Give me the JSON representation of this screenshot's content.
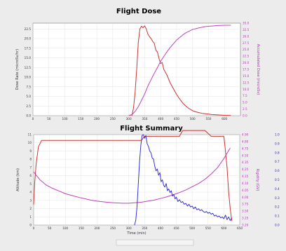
{
  "chart_data": [
    {
      "type": "line",
      "title": "Flight Dose",
      "xlabel": "",
      "ylabel": "Dose Rate (microSv/hr)",
      "y2label": "Accumulated Dose (microSv)",
      "xlim": [
        0,
        650
      ],
      "ylim": [
        0,
        24
      ],
      "y2lim": [
        0,
        35
      ],
      "grid": true,
      "x_ticks": [
        "0",
        "50",
        "100",
        "150",
        "200",
        "250",
        "300",
        "350",
        "400",
        "450",
        "500",
        "550",
        "600"
      ],
      "y_ticks": [
        "0.0",
        "2.5",
        "5.0",
        "7.5",
        "10.0",
        "12.5",
        "15.0",
        "17.5",
        "20.0",
        "22.5"
      ],
      "y2_ticks": [
        "0.0",
        "2.5",
        "5.0",
        "7.5",
        "10.0",
        "12.5",
        "15.0",
        "17.5",
        "20.0",
        "22.5",
        "25.0",
        "27.5",
        "30.0",
        "32.5",
        "35.0"
      ],
      "series": [
        {
          "axis": "left",
          "color": "#cc3333",
          "x": [
            310,
            315,
            320,
            325,
            330,
            335,
            340,
            345,
            350,
            355,
            360,
            365,
            370,
            375,
            380,
            385,
            390,
            395,
            400,
            405,
            410,
            420,
            430,
            440,
            450,
            460,
            470,
            480,
            490,
            500,
            510,
            520,
            530,
            540,
            550,
            560,
            580,
            600,
            620
          ],
          "y": [
            0,
            2,
            6,
            12,
            19,
            22.5,
            23.2,
            22.8,
            23.3,
            22.5,
            21.2,
            20.5,
            20,
            19.3,
            18.8,
            17,
            16.5,
            14.8,
            13.5,
            13.8,
            12,
            10.5,
            8.5,
            7,
            5.5,
            4.3,
            3.2,
            2.4,
            1.8,
            1.3,
            1,
            0.8,
            0.6,
            0.5,
            0.4,
            0.3,
            0.2,
            0.1,
            0.05
          ]
        },
        {
          "axis": "right",
          "color": "#c040c0",
          "x": [
            300,
            310,
            320,
            330,
            340,
            350,
            360,
            370,
            380,
            390,
            400,
            410,
            420,
            430,
            440,
            450,
            460,
            470,
            480,
            490,
            500,
            520,
            540,
            560,
            580,
            600,
            620
          ],
          "y": [
            0,
            0.4,
            1.6,
            3.4,
            5.8,
            8.2,
            11.2,
            13.6,
            16,
            18.2,
            20.6,
            22.4,
            24.2,
            25.8,
            27.2,
            28.6,
            29.6,
            30.6,
            31.4,
            32,
            32.6,
            33.2,
            33.7,
            33.9,
            34.1,
            34.2,
            34.2
          ]
        }
      ]
    },
    {
      "type": "line",
      "title": "Flight Summary",
      "xlabel": "Time (min)",
      "ylabel": "Altitude (km)",
      "y2label": "Rigidity (GV)",
      "y3label": "",
      "xlim": [
        0,
        650
      ],
      "ylim": [
        0,
        11
      ],
      "y2lim": [
        3.2,
        4.9
      ],
      "y3lim": [
        0,
        1
      ],
      "grid": true,
      "x_ticks": [
        "0",
        "50",
        "100",
        "150",
        "200",
        "250",
        "300",
        "350",
        "400",
        "450",
        "500",
        "550",
        "600",
        "650"
      ],
      "y_ticks": [
        "0",
        "1",
        "2",
        "3",
        "4",
        "5",
        "6",
        "7",
        "8",
        "9",
        "10",
        "11"
      ],
      "y2_ticks": [
        "3.20",
        "3.25",
        "3.50",
        "3.75",
        "4.00",
        "4.05",
        "4.10",
        "4.15",
        "4.25",
        "4.35",
        "4.50",
        "4.75",
        "4.80",
        "4.90"
      ],
      "y3_ticks": [
        "0.0",
        "0.1",
        "0.2",
        "0.3",
        "0.4",
        "0.5",
        "0.6",
        "0.7",
        "0.8",
        "0.9",
        "1.0"
      ],
      "series": [
        {
          "axis": "left",
          "color": "#cc3333",
          "x": [
            0,
            3,
            8,
            15,
            25,
            40,
            60,
            100,
            200,
            300,
            320,
            340,
            350,
            360,
            400,
            420,
            440,
            460,
            470,
            500,
            520,
            540,
            560,
            580,
            590,
            600,
            605,
            610,
            615,
            620,
            625
          ],
          "y": [
            2.5,
            5,
            7.5,
            9.5,
            10.3,
            10.3,
            10.3,
            10.3,
            10.3,
            10.3,
            10.3,
            10.3,
            10.8,
            10.8,
            10.8,
            10.8,
            10.8,
            10.8,
            11.5,
            11.5,
            11.5,
            11.5,
            10.8,
            10.8,
            10.8,
            10.8,
            9,
            7,
            4,
            2,
            0.5
          ]
        },
        {
          "axis": "right",
          "color": "#c040c0",
          "x": [
            0,
            5,
            20,
            40,
            60,
            80,
            100,
            130,
            150,
            180,
            200,
            230,
            250,
            280,
            300,
            320,
            340,
            360,
            380,
            400,
            420,
            440,
            460,
            480,
            500,
            520,
            540,
            560,
            580,
            600,
            620
          ],
          "y": [
            4.2,
            4.16,
            4.05,
            3.95,
            3.89,
            3.84,
            3.79,
            3.74,
            3.71,
            3.67,
            3.65,
            3.63,
            3.62,
            3.61,
            3.61,
            3.62,
            3.63,
            3.65,
            3.67,
            3.7,
            3.73,
            3.77,
            3.81,
            3.86,
            3.92,
            3.98,
            4.06,
            4.16,
            4.28,
            4.45,
            4.65
          ]
        },
        {
          "axis": "right2",
          "color": "#3333cc",
          "x": [
            318,
            322,
            326,
            330,
            334,
            338,
            342,
            346,
            350,
            354,
            358,
            362,
            366,
            370,
            374,
            378,
            382,
            386,
            390,
            394,
            398,
            402,
            406,
            410,
            414,
            418,
            422,
            426,
            430,
            434,
            438,
            442,
            446,
            450,
            455,
            460,
            465,
            470,
            475,
            480,
            485,
            490,
            495,
            500,
            505,
            510,
            515,
            520,
            525,
            530,
            535,
            540,
            545,
            550,
            555,
            560,
            565,
            570,
            575,
            580,
            585,
            590,
            595,
            600,
            605,
            610,
            615,
            620,
            625
          ],
          "y": [
            0,
            0.05,
            0.2,
            0.45,
            0.7,
            0.88,
            0.99,
            1,
            0.96,
            0.99,
            0.9,
            0.87,
            0.82,
            0.8,
            0.74,
            0.73,
            0.65,
            0.6,
            0.62,
            0.55,
            0.58,
            0.48,
            0.5,
            0.44,
            0.42,
            0.46,
            0.38,
            0.4,
            0.36,
            0.38,
            0.32,
            0.34,
            0.29,
            0.31,
            0.26,
            0.28,
            0.25,
            0.26,
            0.23,
            0.24,
            0.21,
            0.23,
            0.2,
            0.21,
            0.18,
            0.2,
            0.17,
            0.18,
            0.16,
            0.17,
            0.15,
            0.14,
            0.15,
            0.13,
            0.14,
            0.12,
            0.13,
            0.1,
            0.11,
            0.09,
            0.1,
            0.08,
            0.09,
            0.07,
            0.11,
            0.06,
            0.09,
            0.05,
            0.08
          ]
        }
      ]
    }
  ]
}
